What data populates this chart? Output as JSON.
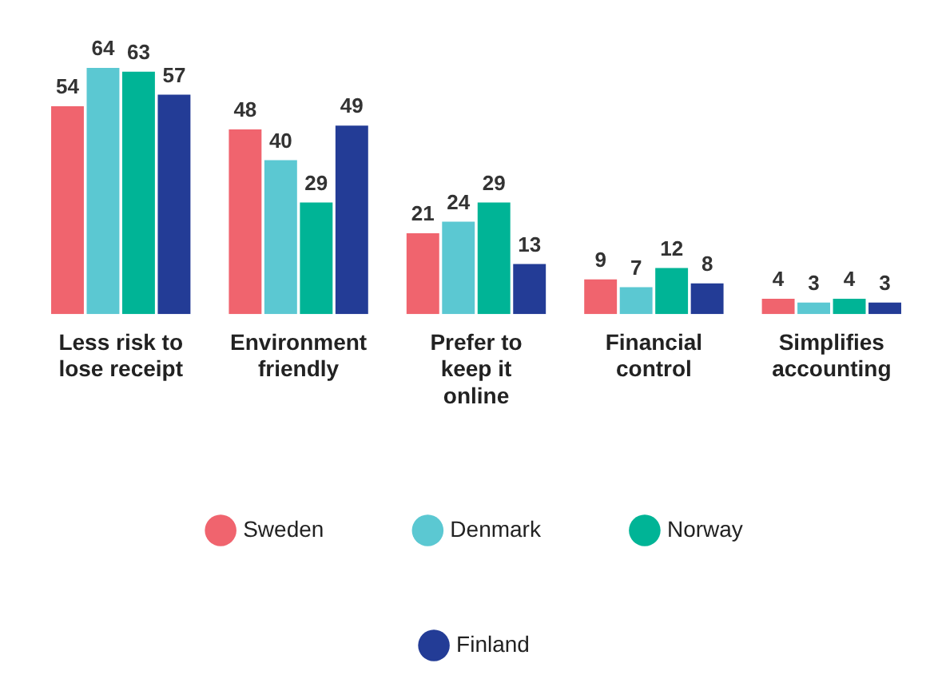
{
  "chart_data": {
    "type": "bar",
    "categories": [
      "Less risk to lose receipt",
      "Environment friendly",
      "Prefer to keep it online",
      "Financial control",
      "Simplifies accounting"
    ],
    "series": [
      {
        "name": "Sweden",
        "color": "#f0646e",
        "values": [
          54,
          48,
          21,
          9,
          4
        ]
      },
      {
        "name": "Denmark",
        "color": "#5bc8d2",
        "values": [
          64,
          40,
          24,
          7,
          3
        ]
      },
      {
        "name": "Norway",
        "color": "#00b496",
        "values": [
          63,
          29,
          29,
          12,
          4
        ]
      },
      {
        "name": "Finland",
        "color": "#233c96",
        "values": [
          57,
          49,
          13,
          8,
          3
        ]
      }
    ],
    "data_labels": true,
    "grid": false,
    "legend": "bottom"
  }
}
